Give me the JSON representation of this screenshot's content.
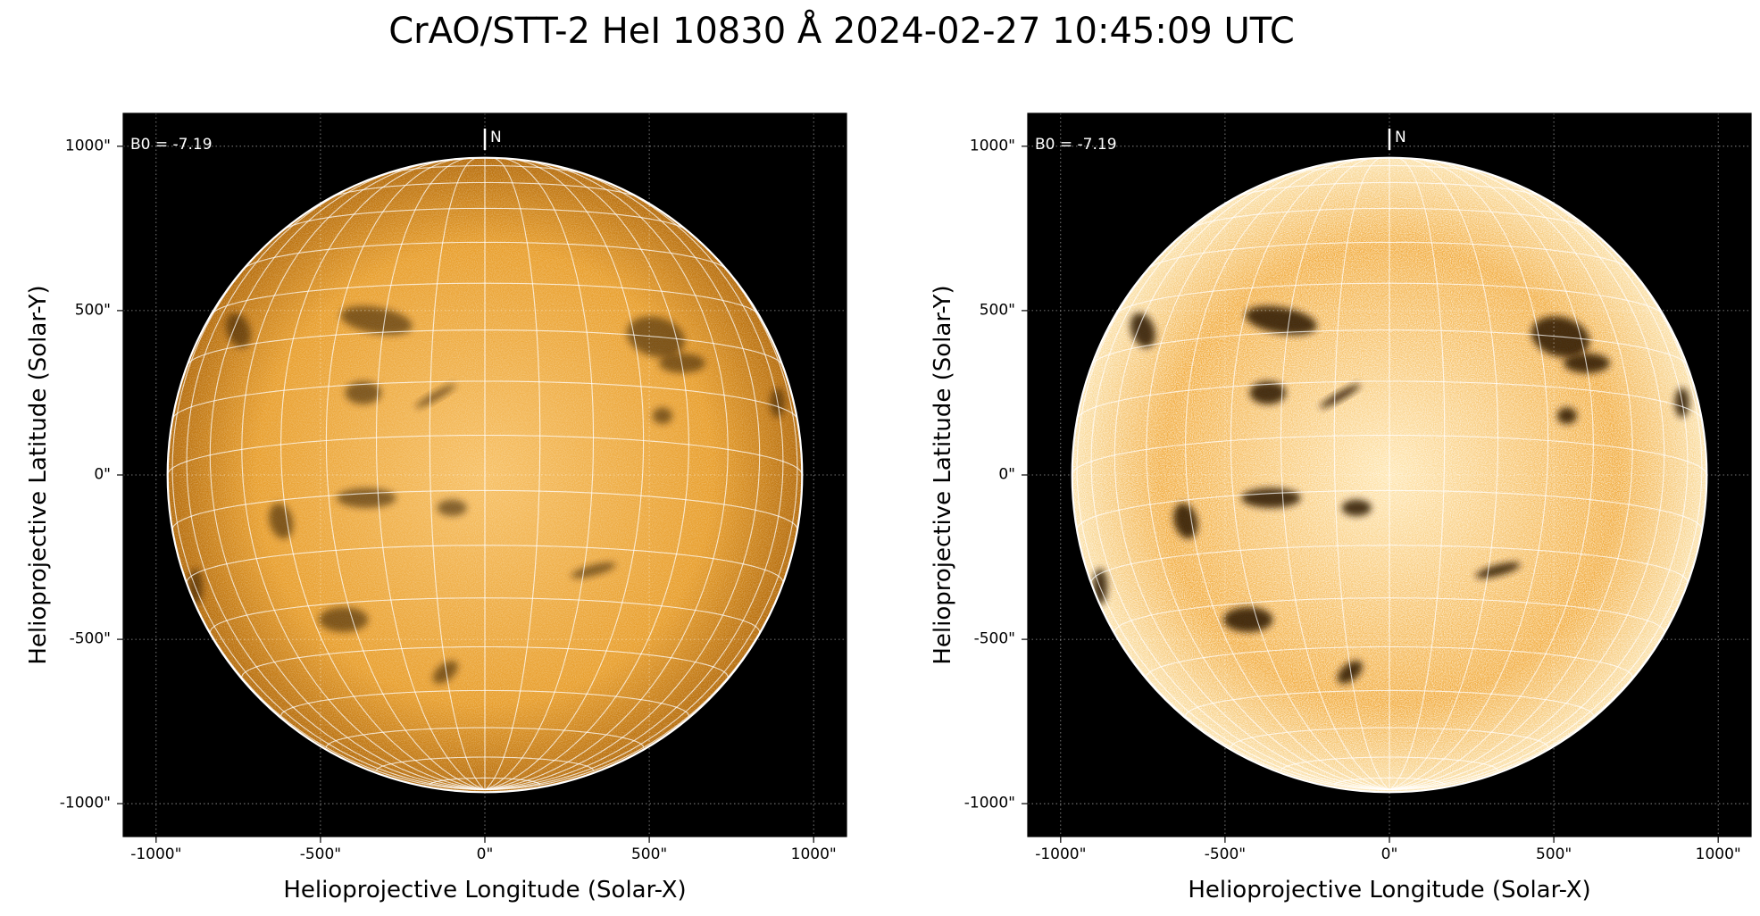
{
  "title": "CrAO/STT-2 HeI 10830 Å 2024-02-27 10:45:09 UTC",
  "colors": {
    "background": "#000000",
    "disk_left_center": "#f7c064",
    "disk_left_mid": "#e89e2b",
    "disk_left_edge": "#b46a08",
    "disk_right_center": "#ffe6b0",
    "disk_right_mid": "#f2ac3e",
    "disk_right_edge": "#fbe0a6",
    "grid": "#ffffff",
    "active_region": "#2a1400"
  },
  "panels": [
    {
      "id": "left",
      "b0_label": "B0 = -7.19",
      "north_label": "N",
      "xlabel": "Helioprojective Longitude (Solar-X)",
      "ylabel": "Helioprojective Latitude (Solar-Y)",
      "xticks": [
        "-1000\"",
        "-500\"",
        "0\"",
        "500\"",
        "1000\""
      ],
      "yticks": [
        "1000\"",
        "500\"",
        "0\"",
        "-500\"",
        "-1000\""
      ]
    },
    {
      "id": "right",
      "b0_label": "B0 = -7.19",
      "north_label": "N",
      "xlabel": "Helioprojective Longitude (Solar-X)",
      "ylabel": "Helioprojective Latitude (Solar-Y)",
      "xticks": [
        "-1000\"",
        "-500\"",
        "0\"",
        "500\"",
        "1000\""
      ],
      "yticks": [
        "1000\"",
        "500\"",
        "0\"",
        "-500\"",
        "-1000\""
      ]
    }
  ],
  "axes": {
    "xlim": [
      -1100,
      1100
    ],
    "ylim": [
      -1100,
      1100
    ],
    "tick_values": [
      -1000,
      -500,
      0,
      500,
      1000
    ],
    "solar_radius_arcsec": 965,
    "b0_deg": -7.19,
    "grid_spacing_deg": 10
  },
  "active_regions": [
    {
      "x": -750,
      "y": 440,
      "rx": 35,
      "ry": 55,
      "rot": -20
    },
    {
      "x": -330,
      "y": 470,
      "rx": 110,
      "ry": 40,
      "rot": 10
    },
    {
      "x": -370,
      "y": 250,
      "rx": 55,
      "ry": 35,
      "rot": 0
    },
    {
      "x": -150,
      "y": 240,
      "rx": 70,
      "ry": 12,
      "rot": -30
    },
    {
      "x": 520,
      "y": 420,
      "rx": 90,
      "ry": 60,
      "rot": 15
    },
    {
      "x": 600,
      "y": 340,
      "rx": 70,
      "ry": 30,
      "rot": 0
    },
    {
      "x": 540,
      "y": 180,
      "rx": 30,
      "ry": 25,
      "rot": 0
    },
    {
      "x": -360,
      "y": -70,
      "rx": 90,
      "ry": 30,
      "rot": 0
    },
    {
      "x": -620,
      "y": -140,
      "rx": 35,
      "ry": 55,
      "rot": -15
    },
    {
      "x": -430,
      "y": -440,
      "rx": 75,
      "ry": 38,
      "rot": 0
    },
    {
      "x": -880,
      "y": -340,
      "rx": 22,
      "ry": 55,
      "rot": 0
    },
    {
      "x": -100,
      "y": -100,
      "rx": 45,
      "ry": 25,
      "rot": 0
    },
    {
      "x": 330,
      "y": -290,
      "rx": 70,
      "ry": 16,
      "rot": -15
    },
    {
      "x": -120,
      "y": -600,
      "rx": 45,
      "ry": 25,
      "rot": -40
    },
    {
      "x": 890,
      "y": 220,
      "rx": 22,
      "ry": 45,
      "rot": 0
    }
  ]
}
